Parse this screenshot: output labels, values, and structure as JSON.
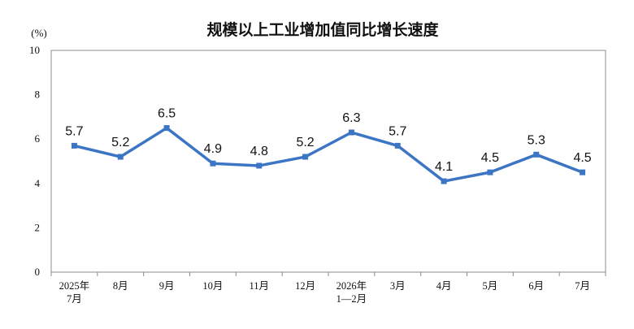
{
  "chart_data": {
    "type": "line",
    "title": "规模以上工业增加值同比增长速度",
    "unit_label": "(%)",
    "categories": [
      [
        "2025年",
        "7月"
      ],
      [
        "8月"
      ],
      [
        "9月"
      ],
      [
        "10月"
      ],
      [
        "11月"
      ],
      [
        "12月"
      ],
      [
        "2026年",
        "1—2月"
      ],
      [
        "3月"
      ],
      [
        "4月"
      ],
      [
        "5月"
      ],
      [
        "6月"
      ],
      [
        "7月"
      ]
    ],
    "values": [
      5.7,
      5.2,
      6.5,
      4.9,
      4.8,
      5.2,
      6.3,
      5.7,
      4.1,
      4.5,
      5.3,
      4.5
    ],
    "data_labels": [
      "5.7",
      "5.2",
      "6.5",
      "4.9",
      "4.8",
      "5.2",
      "6.3",
      "5.7",
      "4.1",
      "4.5",
      "5.3",
      "4.5"
    ],
    "ylim": [
      0,
      10
    ],
    "yticks": [
      "0",
      "2",
      "4",
      "6",
      "8",
      "10"
    ],
    "grid": false,
    "legend": "none",
    "line_color": "#3b75c4",
    "marker": "square"
  }
}
